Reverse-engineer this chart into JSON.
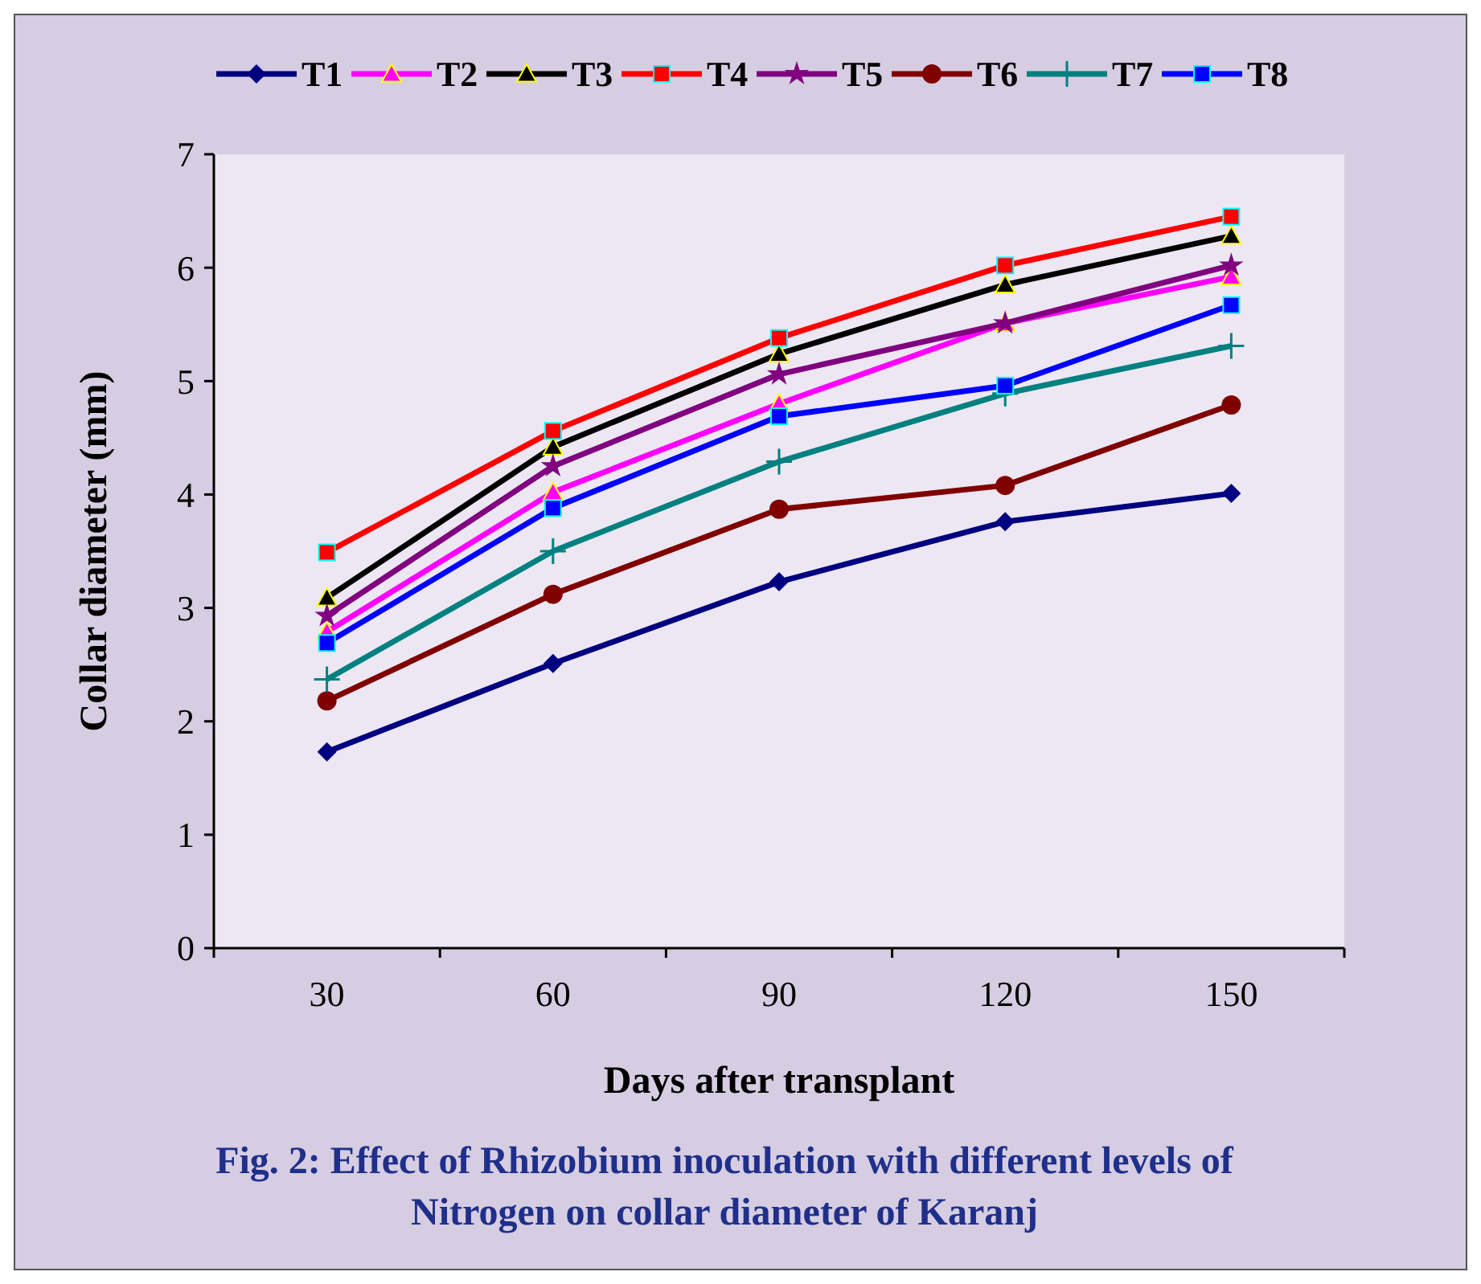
{
  "chart_data": {
    "type": "line",
    "title": "Fig. 2: Effect of Rhizobium inoculation with different levels of Nitrogen  on collar diameter of Karanj",
    "xlabel": "Days after transplant",
    "ylabel": "Collar diameter (mm)",
    "categories": [
      "30",
      "60",
      "90",
      "120",
      "150"
    ],
    "ylim": [
      0,
      7
    ],
    "yticks": [
      0,
      1,
      2,
      3,
      4,
      5,
      6,
      7
    ],
    "grid": false,
    "legend": "top",
    "line_style": "solid",
    "series": [
      {
        "name": "T1",
        "color": "#000080",
        "marker": "diamond",
        "values": [
          1.73,
          2.51,
          3.23,
          3.76,
          4.01
        ]
      },
      {
        "name": "T2",
        "color": "#ff00ff",
        "marker": "triangle",
        "values": [
          2.79,
          4.02,
          4.8,
          5.51,
          5.92
        ]
      },
      {
        "name": "T3",
        "color": "#000000",
        "marker": "triangle",
        "values": [
          3.09,
          4.42,
          5.24,
          5.85,
          6.28
        ]
      },
      {
        "name": "T4",
        "color": "#ff0000",
        "marker": "square",
        "values": [
          3.49,
          4.56,
          5.38,
          6.02,
          6.45
        ]
      },
      {
        "name": "T5",
        "color": "#800080",
        "marker": "star",
        "values": [
          2.93,
          4.25,
          5.06,
          5.51,
          6.02
        ]
      },
      {
        "name": "T6",
        "color": "#800000",
        "marker": "circle",
        "values": [
          2.18,
          3.12,
          3.87,
          4.08,
          4.79
        ]
      },
      {
        "name": "T7",
        "color": "#008080",
        "marker": "cross",
        "values": [
          2.37,
          3.5,
          4.29,
          4.89,
          5.31
        ]
      },
      {
        "name": "T8",
        "color": "#0000ff",
        "marker": "square",
        "values": [
          2.69,
          3.88,
          4.69,
          4.96,
          5.67
        ]
      }
    ]
  }
}
